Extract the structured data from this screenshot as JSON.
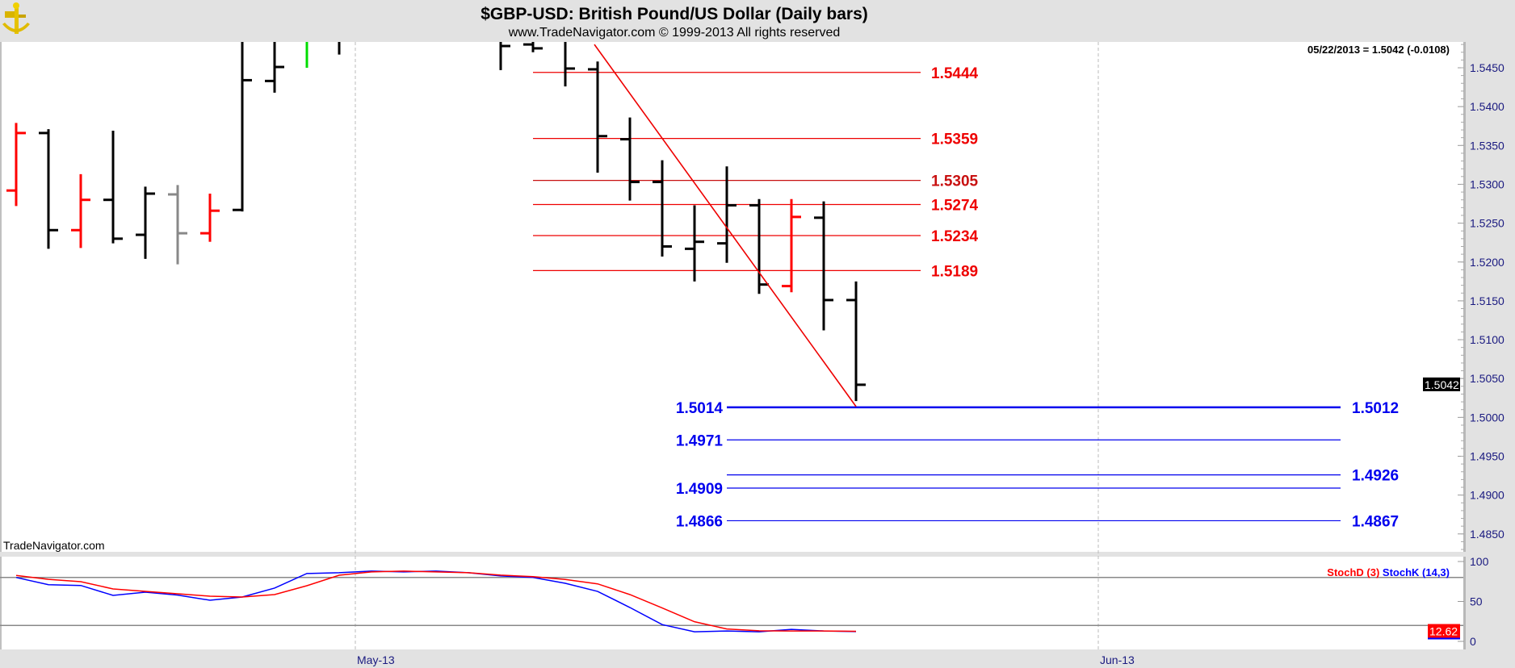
{
  "header": {
    "title": "$GBP-USD:  British Pound/US Dollar  (Daily bars)",
    "subtitle": "www.TradeNavigator.com © 1999-2013 All rights reserved",
    "last_quote": "05/22/2013 = 1.5042 (-0.0108)",
    "watermark": "TradeNavigator.com"
  },
  "colors": {
    "background": "#ffffff",
    "frame": "#e2e2e2",
    "bar_default": "#000000",
    "axis_text": "#1a1a80",
    "fib_red": "#ee0000",
    "fib_red_dark": "#c81010",
    "proj_blue": "#0000ee",
    "trendline": "#ee0000",
    "stochD": "#ff0000",
    "stochK": "#0000ff",
    "ref_line": "#888888"
  },
  "chart_data": [
    {
      "type": "ohlc",
      "title": "$GBP-USD:  British Pound/US Dollar  (Daily bars)",
      "y_axis": {
        "range": [
          1.4822,
          1.5485
        ],
        "ticks": [
          "1.5450",
          "1.5400",
          "1.5350",
          "1.5300",
          "1.5250",
          "1.5200",
          "1.5150",
          "1.5100",
          "1.5050",
          "1.5000",
          "1.4950",
          "1.4900",
          "1.4850"
        ],
        "side": "right"
      },
      "x_axis": {
        "tick_labels": [
          {
            "label": "May-13",
            "bar_index": 10.5
          },
          {
            "label": "Jun-13",
            "bar_index": 33.5
          }
        ],
        "grid": "dashed-vertical"
      },
      "last_price_tag": "1.5042",
      "bars": [
        {
          "o": 1.5292,
          "h": 1.5379,
          "l": 1.5272,
          "c": 1.5366,
          "color": "#ff0000"
        },
        {
          "o": 1.5366,
          "h": 1.5371,
          "l": 1.5217,
          "c": 1.5241,
          "color": "#000000"
        },
        {
          "o": 1.5241,
          "h": 1.5313,
          "l": 1.5218,
          "c": 1.528,
          "color": "#ff0000"
        },
        {
          "o": 1.528,
          "h": 1.5369,
          "l": 1.5224,
          "c": 1.523,
          "color": "#000000"
        },
        {
          "o": 1.5235,
          "h": 1.5297,
          "l": 1.5204,
          "c": 1.5288,
          "color": "#000000"
        },
        {
          "o": 1.5287,
          "h": 1.5299,
          "l": 1.5197,
          "c": 1.5237,
          "color": "#888888"
        },
        {
          "o": 1.5237,
          "h": 1.5288,
          "l": 1.5226,
          "c": 1.5266,
          "color": "#ff0000"
        },
        {
          "o": 1.5267,
          "h": 1.553,
          "l": 1.5265,
          "c": 1.5434,
          "color": "#000000"
        },
        {
          "o": 1.5433,
          "h": 1.553,
          "l": 1.5418,
          "c": 1.5451,
          "color": "#000000"
        },
        {
          "o": 1.552,
          "h": 1.554,
          "l": 1.545,
          "c": 1.553,
          "color": "#00dd00"
        },
        {
          "o": 1.552,
          "h": 1.554,
          "l": 1.5467,
          "c": 1.553,
          "color": "#000000"
        },
        null,
        null,
        null,
        null,
        {
          "o": 1.55,
          "h": 1.551,
          "l": 1.5447,
          "c": 1.5478,
          "color": "#000000"
        },
        {
          "o": 1.548,
          "h": 1.549,
          "l": 1.547,
          "c": 1.5475,
          "color": "#000000"
        },
        {
          "o": 1.55,
          "h": 1.551,
          "l": 1.5426,
          "c": 1.5449,
          "color": "#000000"
        },
        {
          "o": 1.5448,
          "h": 1.5458,
          "l": 1.5315,
          "c": 1.5362,
          "color": "#000000"
        },
        {
          "o": 1.5358,
          "h": 1.5386,
          "l": 1.5279,
          "c": 1.5303,
          "color": "#000000"
        },
        {
          "o": 1.5303,
          "h": 1.5331,
          "l": 1.5207,
          "c": 1.522,
          "color": "#000000"
        },
        {
          "o": 1.5217,
          "h": 1.5273,
          "l": 1.5175,
          "c": 1.5226,
          "color": "#000000"
        },
        {
          "o": 1.5224,
          "h": 1.5323,
          "l": 1.5199,
          "c": 1.5273,
          "color": "#000000"
        },
        {
          "o": 1.5273,
          "h": 1.5281,
          "l": 1.5159,
          "c": 1.5171,
          "color": "#000000"
        },
        {
          "o": 1.5169,
          "h": 1.5281,
          "l": 1.5161,
          "c": 1.5258,
          "color": "#ff0000"
        },
        {
          "o": 1.5257,
          "h": 1.5278,
          "l": 1.5112,
          "c": 1.5151,
          "color": "#000000"
        },
        {
          "o": 1.5151,
          "h": 1.5175,
          "l": 1.5021,
          "c": 1.5042,
          "color": "#000000"
        }
      ],
      "trendline": {
        "from": {
          "bar_index": 17.9,
          "price": 1.548
        },
        "to": {
          "bar_index": 26,
          "price": 1.5014
        },
        "color": "#ee0000"
      },
      "retracement_levels": [
        {
          "price": 1.5444,
          "label": "1.5444",
          "color": "#ee0000",
          "from_bar": 16,
          "to_bar": 28
        },
        {
          "price": 1.5359,
          "label": "1.5359",
          "color": "#ee0000",
          "from_bar": 16,
          "to_bar": 28
        },
        {
          "price": 1.5305,
          "label": "1.5305",
          "color": "#c81010",
          "from_bar": 16,
          "to_bar": 28
        },
        {
          "price": 1.5274,
          "label": "1.5274",
          "color": "#ee0000",
          "from_bar": 16,
          "to_bar": 28
        },
        {
          "price": 1.5234,
          "label": "1.5234",
          "color": "#ee0000",
          "from_bar": 16,
          "to_bar": 28
        },
        {
          "price": 1.5189,
          "label": "1.5189",
          "color": "#ee0000",
          "from_bar": 16,
          "to_bar": 28
        }
      ],
      "projection_levels": [
        {
          "price": 1.5013,
          "label_left": "1.5014",
          "label_right": "1.5012",
          "thick": true
        },
        {
          "price": 1.4971,
          "label_left": "1.4971",
          "label_right": ""
        },
        {
          "price": 1.4926,
          "label_left": "",
          "label_right": "1.4926"
        },
        {
          "price": 1.4909,
          "label_left": "1.4909",
          "label_right": ""
        },
        {
          "price": 1.4867,
          "label_left": "1.4866",
          "label_right": "1.4867"
        }
      ]
    },
    {
      "type": "line",
      "y_axis": {
        "range": [
          -10,
          101
        ],
        "ticks": [
          "100",
          "50",
          "0"
        ],
        "reference_lines": [
          80,
          20
        ]
      },
      "last_value_tag": "12.62",
      "series": [
        {
          "name": "StochD (3)",
          "color": "#ff0000",
          "values": [
            82.6,
            77.7,
            74.7,
            65.7,
            62.6,
            59.6,
            56.6,
            55.6,
            58.6,
            69.7,
            82.8,
            87,
            88,
            87,
            86,
            83,
            81,
            77.5,
            72,
            58.6,
            41.8,
            24.6,
            15.5,
            13.2,
            13,
            13,
            12.62
          ]
        },
        {
          "name": "StochK (14,3)",
          "color": "#0000ff",
          "values": [
            80,
            71,
            70,
            57.6,
            61.6,
            58,
            51.5,
            55.6,
            66.7,
            85,
            86,
            88,
            87,
            88,
            86,
            82,
            80,
            72.7,
            62.6,
            42.4,
            21,
            12,
            13,
            12,
            15,
            13,
            12.3
          ]
        }
      ]
    }
  ]
}
